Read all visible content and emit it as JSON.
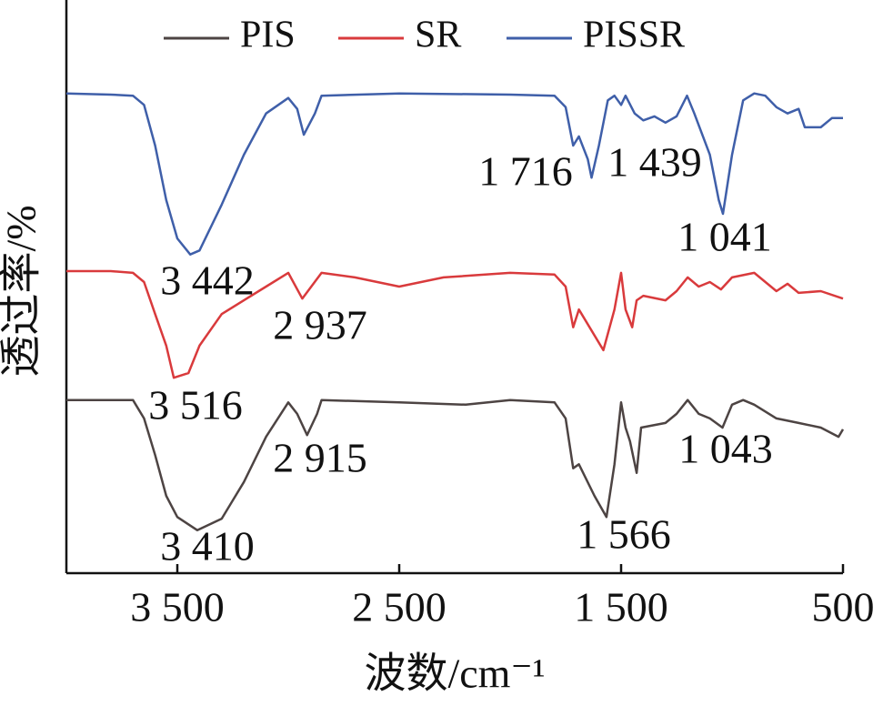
{
  "chart_data": {
    "type": "line",
    "x_label": "波数/cm⁻¹",
    "y_label": "透过率/%",
    "xlim": [
      4000,
      500
    ],
    "ylim": [
      0,
      100
    ],
    "xticks": [
      {
        "value": 3500,
        "label": "3 500"
      },
      {
        "value": 2500,
        "label": "2 500"
      },
      {
        "value": 1500,
        "label": "1 500"
      },
      500
    ],
    "legend": "top",
    "series": [
      {
        "name": "PIS",
        "color": "#4d4443",
        "x": [
          4000,
          3800,
          3700,
          3650,
          3600,
          3550,
          3500,
          3410,
          3300,
          3200,
          3100,
          3000,
          2960,
          2915,
          2870,
          2850,
          2500,
          2200,
          2000,
          1800,
          1750,
          1716,
          1690,
          1620,
          1566,
          1530,
          1500,
          1480,
          1460,
          1430,
          1410,
          1300,
          1250,
          1200,
          1150,
          1100,
          1043,
          1000,
          950,
          900,
          800,
          700,
          600,
          520,
          500
        ],
        "values": [
          30.2,
          30.2,
          30.2,
          27.0,
          20.6,
          13.5,
          9.8,
          7.5,
          9.5,
          15.9,
          23.8,
          29.8,
          27.8,
          24.1,
          27.8,
          30.2,
          29.8,
          29.4,
          30.2,
          29.8,
          27.0,
          18.3,
          19.0,
          13.5,
          9.8,
          19.0,
          29.8,
          25.4,
          23.0,
          17.5,
          25.4,
          26.2,
          27.8,
          30.2,
          27.8,
          27.0,
          25.4,
          29.4,
          30.2,
          29.4,
          27.0,
          26.2,
          25.4,
          23.8,
          25.1
        ]
      },
      {
        "name": "SR",
        "color": "#d93a3c",
        "x": [
          4000,
          3800,
          3700,
          3650,
          3600,
          3550,
          3516,
          3450,
          3400,
          3300,
          3200,
          3100,
          3000,
          2937,
          2850,
          2700,
          2500,
          2300,
          2000,
          1800,
          1750,
          1716,
          1690,
          1580,
          1530,
          1500,
          1480,
          1450,
          1430,
          1400,
          1300,
          1250,
          1200,
          1150,
          1100,
          1050,
          1000,
          900,
          800,
          750,
          700,
          600,
          500
        ],
        "values": [
          52.7,
          52.7,
          52.4,
          50.8,
          45.2,
          39.7,
          34.1,
          34.9,
          39.7,
          45.2,
          47.6,
          50.0,
          52.4,
          47.9,
          52.4,
          51.6,
          50.0,
          51.6,
          52.4,
          52.1,
          50.0,
          42.9,
          46.0,
          38.9,
          46.0,
          52.4,
          46.0,
          42.9,
          47.6,
          48.4,
          47.6,
          49.2,
          51.6,
          50.0,
          50.8,
          49.5,
          51.6,
          52.4,
          49.2,
          50.5,
          48.9,
          49.2,
          47.9
        ]
      },
      {
        "name": "PISSR",
        "color": "#3f5fa9",
        "x": [
          4000,
          3800,
          3700,
          3650,
          3600,
          3550,
          3500,
          3442,
          3400,
          3300,
          3200,
          3100,
          3000,
          2960,
          2930,
          2880,
          2850,
          2500,
          2000,
          1800,
          1750,
          1716,
          1690,
          1650,
          1633,
          1600,
          1560,
          1530,
          1500,
          1480,
          1439,
          1400,
          1350,
          1300,
          1250,
          1203,
          1170,
          1100,
          1060,
          1041,
          1000,
          950,
          900,
          850,
          800,
          750,
          700,
          672,
          600,
          550,
          500
        ],
        "values": [
          83.7,
          83.5,
          83.3,
          81.7,
          74.6,
          65.1,
          58.4,
          55.6,
          56.3,
          64.3,
          73.0,
          80.2,
          82.9,
          81.0,
          76.5,
          80.2,
          83.3,
          83.7,
          83.5,
          83.3,
          81.3,
          74.6,
          76.2,
          72.2,
          69.0,
          74.6,
          82.5,
          83.3,
          81.7,
          83.3,
          80.2,
          79.0,
          79.7,
          78.6,
          79.7,
          83.3,
          80.2,
          73.0,
          65.1,
          62.7,
          73.0,
          82.5,
          83.7,
          83.3,
          81.3,
          80.2,
          81.0,
          77.8,
          77.8,
          79.4,
          79.4
        ]
      }
    ],
    "annotations": [
      {
        "text": "3 442",
        "x": 3442,
        "series": 2
      },
      {
        "text": "1 716",
        "x": 1716,
        "series": 2
      },
      {
        "text": "1 439",
        "x": 1439,
        "series": 2
      },
      {
        "text": "1 041",
        "x": 1041,
        "series": 2
      },
      {
        "text": "2 937",
        "x": 2937,
        "series": 1
      },
      {
        "text": "3 516",
        "x": 3516,
        "series": 1
      },
      {
        "text": "2 915",
        "x": 2915,
        "series": 0
      },
      {
        "text": "1 043",
        "x": 1043,
        "series": 0
      },
      {
        "text": "3 410",
        "x": 3410,
        "series": 0
      },
      {
        "text": "1 566",
        "x": 1566,
        "series": 0
      }
    ]
  }
}
